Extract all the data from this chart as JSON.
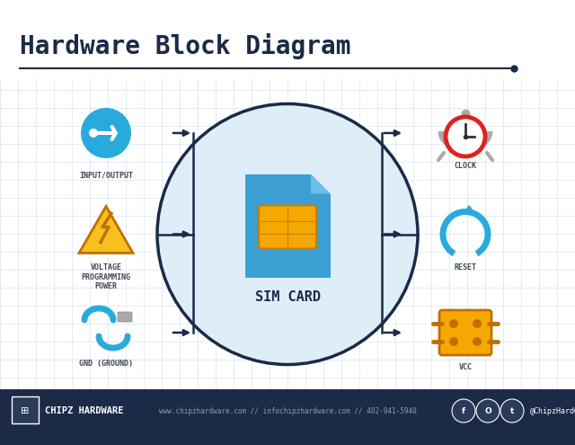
{
  "title": "Hardware Block Diagram",
  "bg_color": "#eef2f7",
  "main_bg": "#ffffff",
  "footer_bg": "#1b2a47",
  "circle_fill": "#ddeef8",
  "circle_edge": "#1b2a47",
  "sim_blue": "#3b9fd4",
  "sim_blue_light": "#6bbfe8",
  "sim_gold": "#f5a800",
  "arrow_color": "#1b2a47",
  "left_labels": [
    "INPUT/OUTPUT",
    "VOLTAGE\nPROGRAMMING\nPOWER",
    "GND (GROUND)"
  ],
  "right_labels": [
    "CLOCK",
    "RESET",
    "VCC"
  ],
  "center_label": "SIM CARD",
  "footer_text": "CHIPZ HARDWARE",
  "footer_center": "www.chipzhardware.com // infochipzhardware.com // 402-941-5940",
  "footer_right": "@ChipzHardware",
  "title_color": "#1b2a47",
  "label_color": "#444455",
  "grid_color": "#d8e4f0",
  "io_icon_color": "#29aadd",
  "reset_icon_color": "#29aadd",
  "clock_ring_color": "#dd2222",
  "voltage_yellow": "#f5c020",
  "voltage_dark": "#c07000",
  "gnd_color": "#29aadd",
  "vcc_color": "#f5a800"
}
